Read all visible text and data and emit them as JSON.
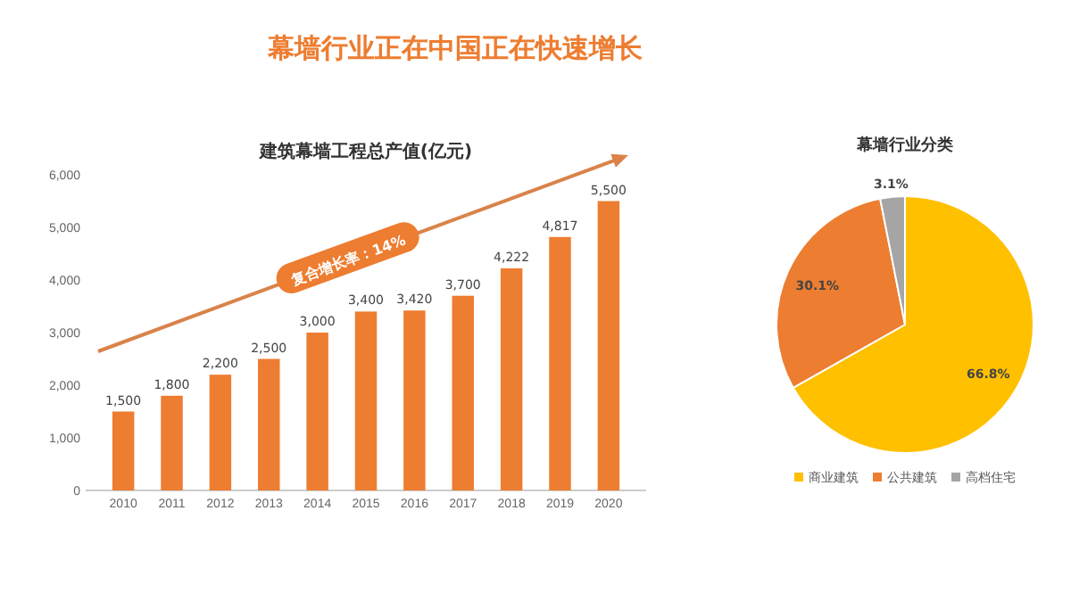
{
  "chart_data": [
    {
      "type": "bar",
      "title": "幕墙行业正在中国正在快速增长",
      "subtitle": "建筑幕墙工程总产值(亿元)",
      "categories": [
        "2010",
        "2011",
        "2012",
        "2013",
        "2014",
        "2015",
        "2016",
        "2017",
        "2018",
        "2019",
        "2020"
      ],
      "values": [
        1500,
        1800,
        2200,
        2500,
        3000,
        3400,
        3420,
        3700,
        4222,
        4817,
        5500
      ],
      "color": "#ed7d31",
      "ylim": [
        0,
        6000
      ],
      "yticks": [
        {
          "value": 0,
          "label": "0"
        },
        {
          "value": 1000,
          "label": "1,000"
        },
        {
          "value": 2000,
          "label": "2,000"
        },
        {
          "value": 3000,
          "label": "3,000"
        },
        {
          "value": 4000,
          "label": "4,000"
        },
        {
          "value": 5000,
          "label": "5,000"
        },
        {
          "value": 6000,
          "label": "6,000"
        }
      ],
      "value_labels": [
        "1,500",
        "1,800",
        "2,200",
        "2,500",
        "3,000",
        "3,400",
        "3,420",
        "3,700",
        "4,222",
        "4,817",
        "5,500"
      ],
      "annotations": [
        "复合增长率：14%"
      ],
      "grid": false
    },
    {
      "type": "pie",
      "title": "幕墙行业分类",
      "categories": [
        "商业建筑",
        "公共建筑",
        "高档住宅"
      ],
      "values": [
        66.8,
        30.1,
        3.1
      ],
      "colors": [
        "#ffc000",
        "#ed7d31",
        "#a5a5a5"
      ],
      "value_labels": [
        "66.8%",
        "30.1%",
        "3.1%"
      ],
      "legend": "bottom"
    }
  ]
}
